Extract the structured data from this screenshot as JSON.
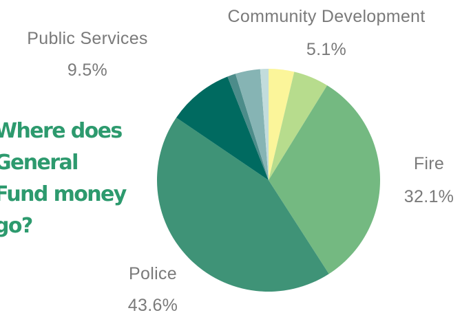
{
  "headline": {
    "lines": [
      "Where does",
      "General",
      "Fund money",
      "go?"
    ]
  },
  "chart_data": {
    "type": "pie",
    "start_angle_deg": 0,
    "direction": "clockwise",
    "slices": [
      {
        "value": 3.7,
        "color": "#fbf59a"
      },
      {
        "value": 5.1,
        "color": "#b7dc8d",
        "label": "Community Development",
        "value_label": "5.1%"
      },
      {
        "value": 32.1,
        "color": "#74b981",
        "label": "Fire",
        "value_label": "32.1%"
      },
      {
        "value": 43.6,
        "color": "#3f9377",
        "label": "Police",
        "value_label": "43.6%"
      },
      {
        "value": 9.5,
        "color": "#006a60",
        "label": "Public Services",
        "value_label": "9.5%"
      },
      {
        "value": 1.2,
        "color": "#4c8c8a"
      },
      {
        "value": 3.6,
        "color": "#86b4b4"
      },
      {
        "value": 1.2,
        "color": "#c2dcdc"
      }
    ]
  }
}
